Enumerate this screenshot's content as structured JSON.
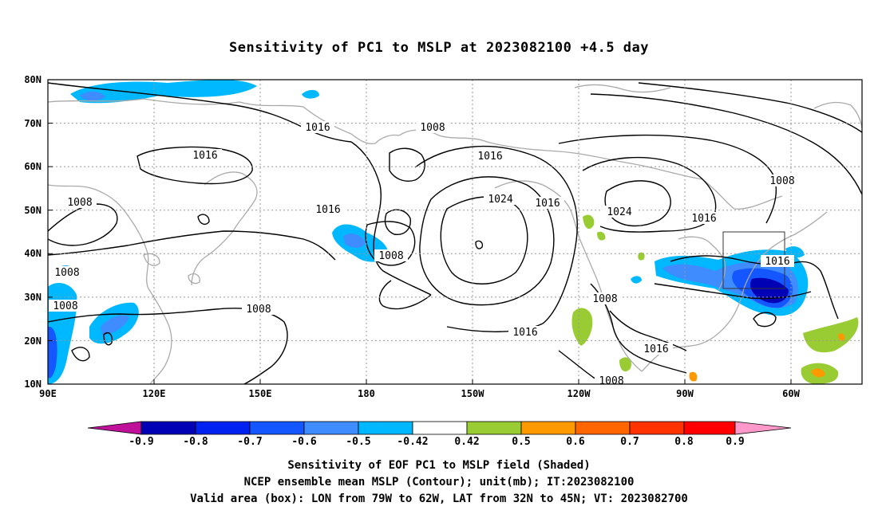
{
  "title": "Sensitivity of PC1 to MSLP at 2023082100 +4.5 day",
  "axes": {
    "lat_labels": [
      "80N",
      "70N",
      "60N",
      "50N",
      "40N",
      "30N",
      "20N",
      "10N"
    ],
    "lon_labels": [
      "90E",
      "120E",
      "150E",
      "180",
      "150W",
      "120W",
      "90W",
      "60W"
    ]
  },
  "contours": {
    "unit": "mb",
    "labels": [
      "1016",
      "1008",
      "1016",
      "1008",
      "1008",
      "1008",
      "1008",
      "1016",
      "1008",
      "1016",
      "1024",
      "1016",
      "1024",
      "1016",
      "1008",
      "1016",
      "1008",
      "1016",
      "1008",
      "1016"
    ]
  },
  "shading": {
    "colors": {
      "lt_-0.9": "#c0119a",
      "-0.9_-0.8": "#0000b4",
      "-0.8_-0.7": "#0022f0",
      "-0.7_-0.6": "#1456ff",
      "-0.6_-0.5": "#3f8cff",
      "-0.5_-0.42": "#00b8ff",
      "-0.42_0.42": "#ffffff",
      "0.42_0.5": "#99cc33",
      "0.5_0.6": "#ff9900",
      "0.6_0.7": "#ff6600",
      "0.7_0.8": "#ff3300",
      "0.8_0.9": "#ff0000",
      "gt_0.9": "#ff99cc"
    }
  },
  "valid_area_box": {
    "lon_from": "79W",
    "lon_to": "62W",
    "lat_from": "32N",
    "lat_to": "45N"
  },
  "colorbar": {
    "labels": [
      "-0.9",
      "-0.8",
      "-0.7",
      "-0.6",
      "-0.5",
      "-0.42",
      "0.42",
      "0.5",
      "0.6",
      "0.7",
      "0.8",
      "0.9"
    ]
  },
  "caption": {
    "line1": "Sensitivity of EOF PC1 to MSLP field (Shaded)",
    "line2": "NCEP ensemble mean MSLP (Contour); unit(mb); IT:2023082100",
    "line3": "Valid area (box): LON from 79W to 62W, LAT from 32N to 45N; VT: 2023082700"
  }
}
